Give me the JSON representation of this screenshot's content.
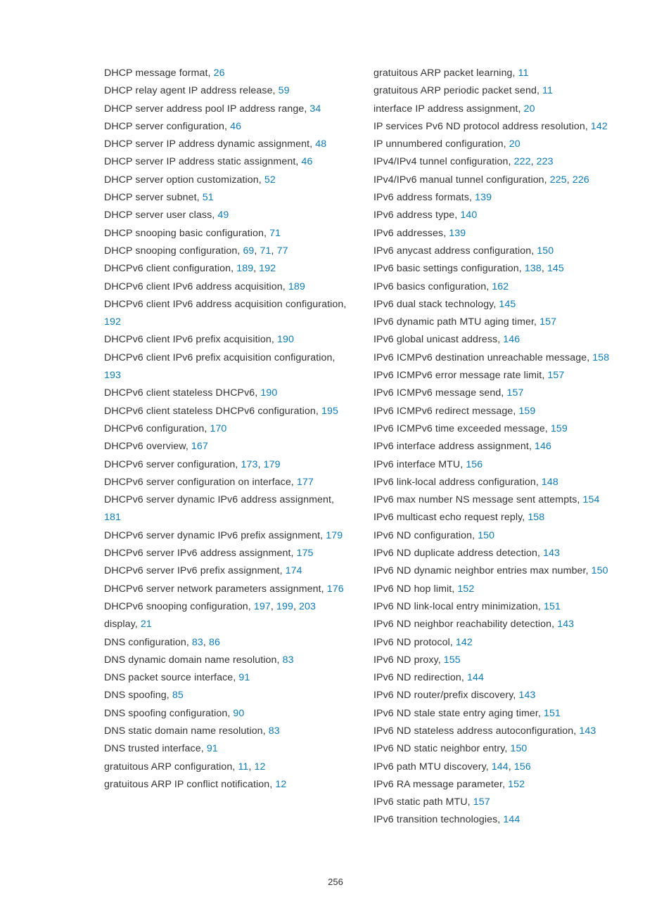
{
  "pageNumber": "256",
  "text_color": "#333333",
  "link_color": "#0d7bb5",
  "background_color": "#ffffff",
  "body_fontsize": 14.2,
  "line_height": 25.3,
  "pagenum_fontsize": 13,
  "left": [
    {
      "text": "DHCP message format, ",
      "pages": [
        "26"
      ]
    },
    {
      "text": "DHCP relay agent IP address release, ",
      "pages": [
        "59"
      ]
    },
    {
      "text": "DHCP server address pool IP address range, ",
      "pages": [
        "34"
      ]
    },
    {
      "text": "DHCP server configuration, ",
      "pages": [
        "46"
      ]
    },
    {
      "text": "DHCP server IP address dynamic assignment, ",
      "pages": [
        "48"
      ]
    },
    {
      "text": "DHCP server IP address static assignment, ",
      "pages": [
        "46"
      ]
    },
    {
      "text": "DHCP server option customization, ",
      "pages": [
        "52"
      ]
    },
    {
      "text": "DHCP server subnet, ",
      "pages": [
        "51"
      ]
    },
    {
      "text": "DHCP server user class, ",
      "pages": [
        "49"
      ]
    },
    {
      "text": "DHCP snooping basic configuration, ",
      "pages": [
        "71"
      ]
    },
    {
      "text": "DHCP snooping configuration, ",
      "pages": [
        "69",
        "71",
        "77"
      ]
    },
    {
      "text": "DHCPv6 client configuration, ",
      "pages": [
        "189",
        "192"
      ]
    },
    {
      "text": "DHCPv6 client IPv6 address acquisition, ",
      "pages": [
        "189"
      ]
    },
    {
      "text": "DHCPv6 client IPv6 address acquisition configuration, ",
      "pages": [
        "192"
      ]
    },
    {
      "text": "DHCPv6 client IPv6 prefix acquisition, ",
      "pages": [
        "190"
      ]
    },
    {
      "text": "DHCPv6 client IPv6 prefix acquisition configuration, ",
      "pages": [
        "193"
      ]
    },
    {
      "text": "DHCPv6 client stateless DHCPv6, ",
      "pages": [
        "190"
      ]
    },
    {
      "text": "DHCPv6 client stateless DHCPv6 configuration, ",
      "pages": [
        "195"
      ]
    },
    {
      "text": "DHCPv6 configuration, ",
      "pages": [
        "170"
      ]
    },
    {
      "text": "DHCPv6 overview, ",
      "pages": [
        "167"
      ]
    },
    {
      "text": "DHCPv6 server configuration, ",
      "pages": [
        "173",
        "179"
      ]
    },
    {
      "text": "DHCPv6 server configuration on interface, ",
      "pages": [
        "177"
      ]
    },
    {
      "text": "DHCPv6 server dynamic IPv6 address assignment, ",
      "pages": [
        "181"
      ]
    },
    {
      "text": "DHCPv6 server dynamic IPv6 prefix assignment, ",
      "pages": [
        "179"
      ]
    },
    {
      "text": "DHCPv6 server IPv6 address assignment, ",
      "pages": [
        "175"
      ]
    },
    {
      "text": "DHCPv6 server IPv6 prefix assignment, ",
      "pages": [
        "174"
      ]
    },
    {
      "text": "DHCPv6 server network parameters assignment, ",
      "pages": [
        "176"
      ]
    },
    {
      "text": "DHCPv6 snooping configuration, ",
      "pages": [
        "197",
        "199",
        "203"
      ]
    },
    {
      "text": "display, ",
      "pages": [
        "21"
      ]
    },
    {
      "text": "DNS configuration, ",
      "pages": [
        "83",
        "86"
      ]
    },
    {
      "text": "DNS dynamic domain name resolution, ",
      "pages": [
        "83"
      ]
    },
    {
      "text": "DNS packet source interface, ",
      "pages": [
        "91"
      ]
    },
    {
      "text": "DNS spoofing, ",
      "pages": [
        "85"
      ]
    },
    {
      "text": "DNS spoofing configuration, ",
      "pages": [
        "90"
      ]
    },
    {
      "text": "DNS static domain name resolution, ",
      "pages": [
        "83"
      ]
    },
    {
      "text": "DNS trusted interface, ",
      "pages": [
        "91"
      ]
    },
    {
      "text": "gratuitous ARP configuration, ",
      "pages": [
        "11",
        "12"
      ]
    },
    {
      "text": "gratuitous ARP IP conflict notification, ",
      "pages": [
        "12"
      ]
    }
  ],
  "right": [
    {
      "text": "gratuitous ARP packet learning, ",
      "pages": [
        "11"
      ]
    },
    {
      "text": "gratuitous ARP periodic packet send, ",
      "pages": [
        "11"
      ]
    },
    {
      "text": "interface IP address assignment, ",
      "pages": [
        "20"
      ]
    },
    {
      "text": "IP services Pv6 ND protocol address resolution, ",
      "pages": [
        "142"
      ]
    },
    {
      "text": "IP unnumbered configuration, ",
      "pages": [
        "20"
      ]
    },
    {
      "text": "IPv4/IPv4 tunnel configuration, ",
      "pages": [
        "222",
        "223"
      ]
    },
    {
      "text": "IPv4/IPv6 manual tunnel configuration, ",
      "pages": [
        "225",
        "226"
      ]
    },
    {
      "text": "IPv6 address formats, ",
      "pages": [
        "139"
      ]
    },
    {
      "text": "IPv6 address type, ",
      "pages": [
        "140"
      ]
    },
    {
      "text": "IPv6 addresses, ",
      "pages": [
        "139"
      ]
    },
    {
      "text": "IPv6 anycast address configuration, ",
      "pages": [
        "150"
      ]
    },
    {
      "text": "IPv6 basic settings configuration, ",
      "pages": [
        "138",
        "145"
      ]
    },
    {
      "text": "IPv6 basics configuration, ",
      "pages": [
        "162"
      ]
    },
    {
      "text": "IPv6 dual stack technology, ",
      "pages": [
        "145"
      ]
    },
    {
      "text": "IPv6 dynamic path MTU aging timer, ",
      "pages": [
        "157"
      ]
    },
    {
      "text": "IPv6 global unicast address, ",
      "pages": [
        "146"
      ]
    },
    {
      "text": "IPv6 ICMPv6 destination unreachable message, ",
      "pages": [
        "158"
      ]
    },
    {
      "text": "IPv6 ICMPv6 error message rate limit, ",
      "pages": [
        "157"
      ]
    },
    {
      "text": "IPv6 ICMPv6 message send, ",
      "pages": [
        "157"
      ]
    },
    {
      "text": "IPv6 ICMPv6 redirect message, ",
      "pages": [
        "159"
      ]
    },
    {
      "text": "IPv6 ICMPv6 time exceeded message, ",
      "pages": [
        "159"
      ]
    },
    {
      "text": "IPv6 interface address assignment, ",
      "pages": [
        "146"
      ]
    },
    {
      "text": "IPv6 interface MTU, ",
      "pages": [
        "156"
      ]
    },
    {
      "text": "IPv6 link-local address configuration, ",
      "pages": [
        "148"
      ]
    },
    {
      "text": "IPv6 max number NS message sent attempts, ",
      "pages": [
        "154"
      ]
    },
    {
      "text": "IPv6 multicast echo request reply, ",
      "pages": [
        "158"
      ]
    },
    {
      "text": "IPv6 ND configuration, ",
      "pages": [
        "150"
      ]
    },
    {
      "text": "IPv6 ND duplicate address detection, ",
      "pages": [
        "143"
      ]
    },
    {
      "text": "IPv6 ND dynamic neighbor entries max number, ",
      "pages": [
        "150"
      ]
    },
    {
      "text": "IPv6 ND hop limit, ",
      "pages": [
        "152"
      ]
    },
    {
      "text": "IPv6 ND link-local entry minimization, ",
      "pages": [
        "151"
      ]
    },
    {
      "text": "IPv6 ND neighbor reachability detection, ",
      "pages": [
        "143"
      ]
    },
    {
      "text": "IPv6 ND protocol, ",
      "pages": [
        "142"
      ]
    },
    {
      "text": "IPv6 ND proxy, ",
      "pages": [
        "155"
      ]
    },
    {
      "text": "IPv6 ND redirection, ",
      "pages": [
        "144"
      ]
    },
    {
      "text": "IPv6 ND router/prefix discovery, ",
      "pages": [
        "143"
      ]
    },
    {
      "text": "IPv6 ND stale state entry aging timer, ",
      "pages": [
        "151"
      ]
    },
    {
      "text": "IPv6 ND stateless address autoconfiguration, ",
      "pages": [
        "143"
      ]
    },
    {
      "text": "IPv6 ND static neighbor entry, ",
      "pages": [
        "150"
      ]
    },
    {
      "text": "IPv6 path MTU discovery, ",
      "pages": [
        "144",
        "156"
      ]
    },
    {
      "text": "IPv6 RA message parameter, ",
      "pages": [
        "152"
      ]
    },
    {
      "text": "IPv6 static path MTU, ",
      "pages": [
        "157"
      ]
    },
    {
      "text": "IPv6 transition technologies, ",
      "pages": [
        "144"
      ]
    }
  ]
}
